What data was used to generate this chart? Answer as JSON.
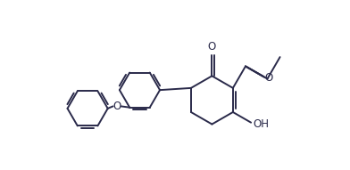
{
  "bg_color": "#ffffff",
  "line_color": "#2a2a4a",
  "line_width": 1.4,
  "figsize": [
    3.92,
    1.91
  ],
  "dpi": 100,
  "xlim": [
    0,
    10
  ],
  "ylim": [
    0,
    5
  ],
  "ring_r": 0.72,
  "ph_r": 0.6
}
